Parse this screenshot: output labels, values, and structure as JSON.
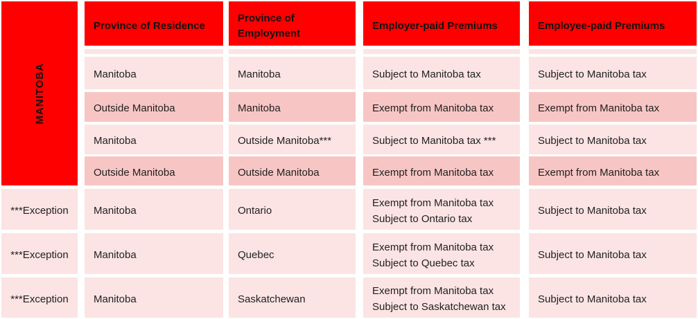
{
  "colors": {
    "accent_red": "#ff0000",
    "row_light": "#fbe4e3",
    "row_dark": "#f7c6c4",
    "header_text": "#111111",
    "body_text": "#1f1f1f"
  },
  "table": {
    "side_label": "MANITOBA",
    "headers": {
      "residence": "Province of Residence",
      "employment": "Province of Employment",
      "employer": "Employer-paid Premiums",
      "employee": "Employee-paid Premiums"
    },
    "rows": [
      {
        "residence": "Manitoba",
        "employment": "Manitoba",
        "employer_lines": [
          "Subject to Manitoba tax"
        ],
        "employee": "Subject to Manitoba tax"
      },
      {
        "residence": "Outside Manitoba",
        "employment": "Manitoba",
        "employer_lines": [
          "Exempt from Manitoba tax"
        ],
        "employee": "Exempt from Manitoba tax"
      },
      {
        "residence": "Manitoba",
        "employment": "Outside Manitoba***",
        "employer_lines": [
          "Subject to Manitoba tax ***"
        ],
        "employee": "Subject to Manitoba tax"
      },
      {
        "residence": "Outside Manitoba",
        "employment": "Outside Manitoba",
        "employer_lines": [
          "Exempt from Manitoba tax"
        ],
        "employee": "Exempt from Manitoba tax"
      },
      {
        "label": "***Exception",
        "residence": "Manitoba",
        "employment": "Ontario",
        "employer_lines": [
          "Exempt from Manitoba tax",
          "Subject to Ontario tax"
        ],
        "employee": "Subject to Manitoba tax"
      },
      {
        "label": "***Exception",
        "residence": "Manitoba",
        "employment": "Quebec",
        "employer_lines": [
          "Exempt from Manitoba tax",
          "Subject to Quebec tax"
        ],
        "employee": "Subject to Manitoba tax"
      },
      {
        "label": "***Exception",
        "residence": "Manitoba",
        "employment": "Saskatchewan",
        "employer_lines": [
          "Exempt from Manitoba tax",
          "Subject to Saskatchewan tax"
        ],
        "employee": "Subject to Manitoba tax"
      }
    ]
  }
}
